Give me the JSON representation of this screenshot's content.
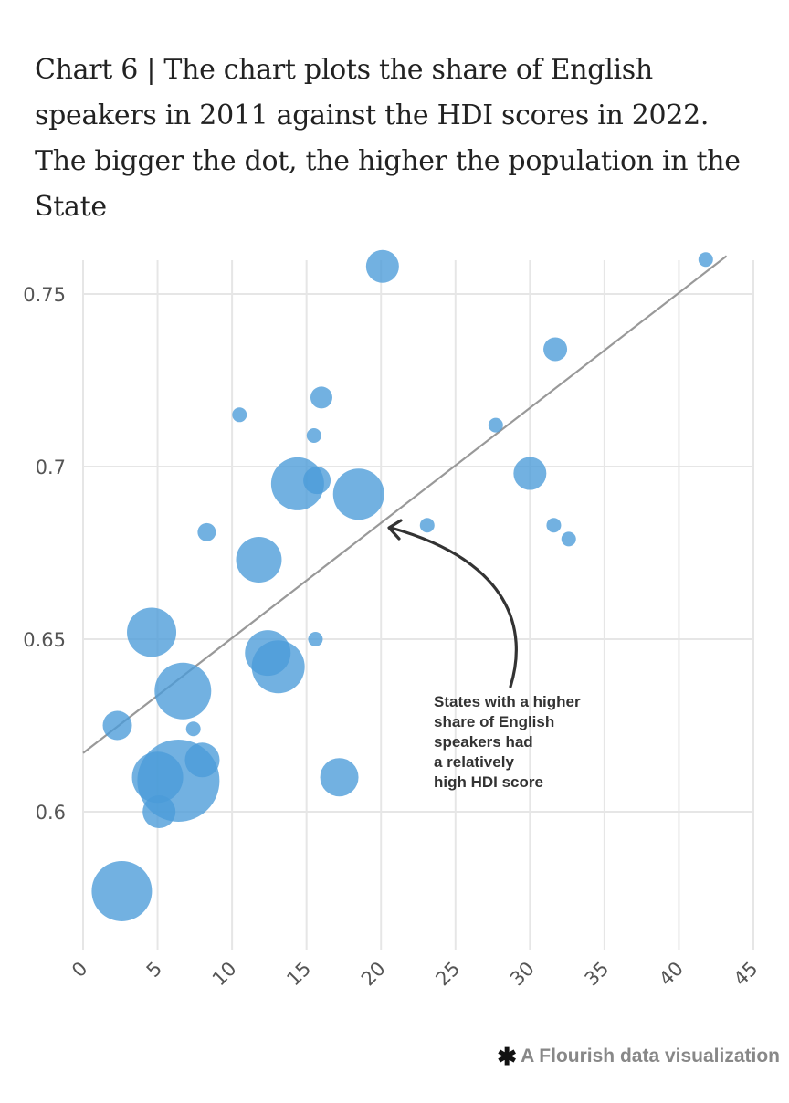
{
  "title": "Chart 6 | The chart plots the share of English speakers in 2011 against the HDI scores in 2022. The bigger the dot, the higher the population in the State",
  "credit": {
    "icon": "flourish-asterisk-icon",
    "text": "A Flourish data visualization"
  },
  "annotation": {
    "lines": [
      "States with a higher",
      "share of English",
      "speakers had",
      "a relatively",
      "high HDI score"
    ]
  },
  "colors": {
    "bubble": "#4a9bd8",
    "trendline": "#999999",
    "grid": "#e6e6e6",
    "arrow": "#333333"
  },
  "chart_data": {
    "type": "scatter",
    "xlim": [
      0,
      45
    ],
    "ylim": [
      0.56,
      0.76
    ],
    "x_ticks": [
      "0",
      "5",
      "10",
      "15",
      "20",
      "25",
      "30",
      "35",
      "40",
      "45"
    ],
    "y_ticks": [
      "0.6",
      "0.65",
      "0.7",
      "0.75"
    ],
    "y_tick_values": [
      0.6,
      0.65,
      0.7,
      0.75
    ],
    "x_tick_values": [
      0,
      5,
      10,
      15,
      20,
      25,
      30,
      35,
      40,
      45
    ],
    "grid": true,
    "size_encoding": "population",
    "trendline": {
      "x": [
        0,
        43.2
      ],
      "y": [
        0.617,
        0.761
      ]
    },
    "points": [
      {
        "x": 6.4,
        "y": 0.609,
        "size": 45
      },
      {
        "x": 14.4,
        "y": 0.695,
        "size": 29
      },
      {
        "x": 6.7,
        "y": 0.635,
        "size": 31
      },
      {
        "x": 2.6,
        "y": 0.577,
        "size": 33
      },
      {
        "x": 13.1,
        "y": 0.642,
        "size": 29
      },
      {
        "x": 5.0,
        "y": 0.61,
        "size": 28
      },
      {
        "x": 18.5,
        "y": 0.692,
        "size": 28
      },
      {
        "x": 4.6,
        "y": 0.652,
        "size": 27
      },
      {
        "x": 12.4,
        "y": 0.646,
        "size": 25
      },
      {
        "x": 11.8,
        "y": 0.673,
        "size": 25
      },
      {
        "x": 17.2,
        "y": 0.61,
        "size": 21
      },
      {
        "x": 8.0,
        "y": 0.615,
        "size": 19
      },
      {
        "x": 5.1,
        "y": 0.6,
        "size": 18
      },
      {
        "x": 20.1,
        "y": 0.758,
        "size": 18
      },
      {
        "x": 30.0,
        "y": 0.698,
        "size": 18
      },
      {
        "x": 2.3,
        "y": 0.625,
        "size": 16
      },
      {
        "x": 15.7,
        "y": 0.696,
        "size": 15
      },
      {
        "x": 31.7,
        "y": 0.734,
        "size": 13
      },
      {
        "x": 16.0,
        "y": 0.72,
        "size": 12
      },
      {
        "x": 8.3,
        "y": 0.681,
        "size": 10
      },
      {
        "x": 10.5,
        "y": 0.715,
        "size": 8
      },
      {
        "x": 15.5,
        "y": 0.709,
        "size": 8
      },
      {
        "x": 15.6,
        "y": 0.65,
        "size": 8
      },
      {
        "x": 23.1,
        "y": 0.683,
        "size": 8
      },
      {
        "x": 27.7,
        "y": 0.712,
        "size": 8
      },
      {
        "x": 31.6,
        "y": 0.683,
        "size": 8
      },
      {
        "x": 32.6,
        "y": 0.679,
        "size": 8
      },
      {
        "x": 7.4,
        "y": 0.624,
        "size": 8
      },
      {
        "x": 41.8,
        "y": 0.76,
        "size": 8
      }
    ]
  }
}
